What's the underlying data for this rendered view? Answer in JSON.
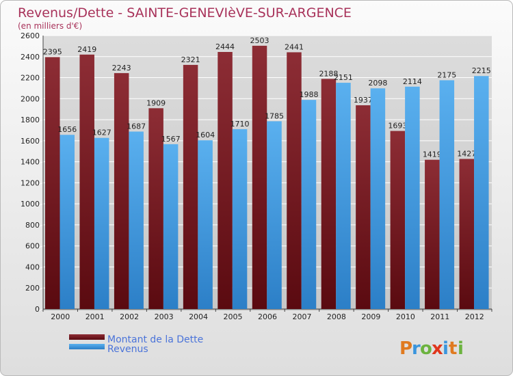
{
  "chart_data": {
    "type": "bar",
    "title": "Revenus/Dette - SAINTE-GENEVIèVE-SUR-ARGENCE",
    "subtitle": "(en milliers d'€)",
    "categories": [
      "2000",
      "2001",
      "2002",
      "2003",
      "2004",
      "2005",
      "2006",
      "2007",
      "2008",
      "2009",
      "2010",
      "2011",
      "2012"
    ],
    "series": [
      {
        "name": "Montant de la Dette",
        "values": [
          2395,
          2419,
          2243,
          1909,
          2321,
          2444,
          2503,
          2441,
          2188,
          1937,
          1693,
          1419,
          1427
        ],
        "color": "#7a1c22"
      },
      {
        "name": "Revenus",
        "values": [
          1656,
          1627,
          1687,
          1567,
          1604,
          1710,
          1785,
          1988,
          2151,
          2098,
          2114,
          2175,
          2215
        ],
        "color": "#3a95dd"
      }
    ],
    "ylim": [
      0,
      2600
    ],
    "yticks": [
      0,
      200,
      400,
      600,
      800,
      1000,
      1200,
      1400,
      1600,
      1800,
      2000,
      2200,
      2400,
      2600
    ],
    "grid": true,
    "legend_position": "bottom-left"
  },
  "logo": {
    "text": "Proxiti",
    "icon": "proxiti-logo"
  }
}
